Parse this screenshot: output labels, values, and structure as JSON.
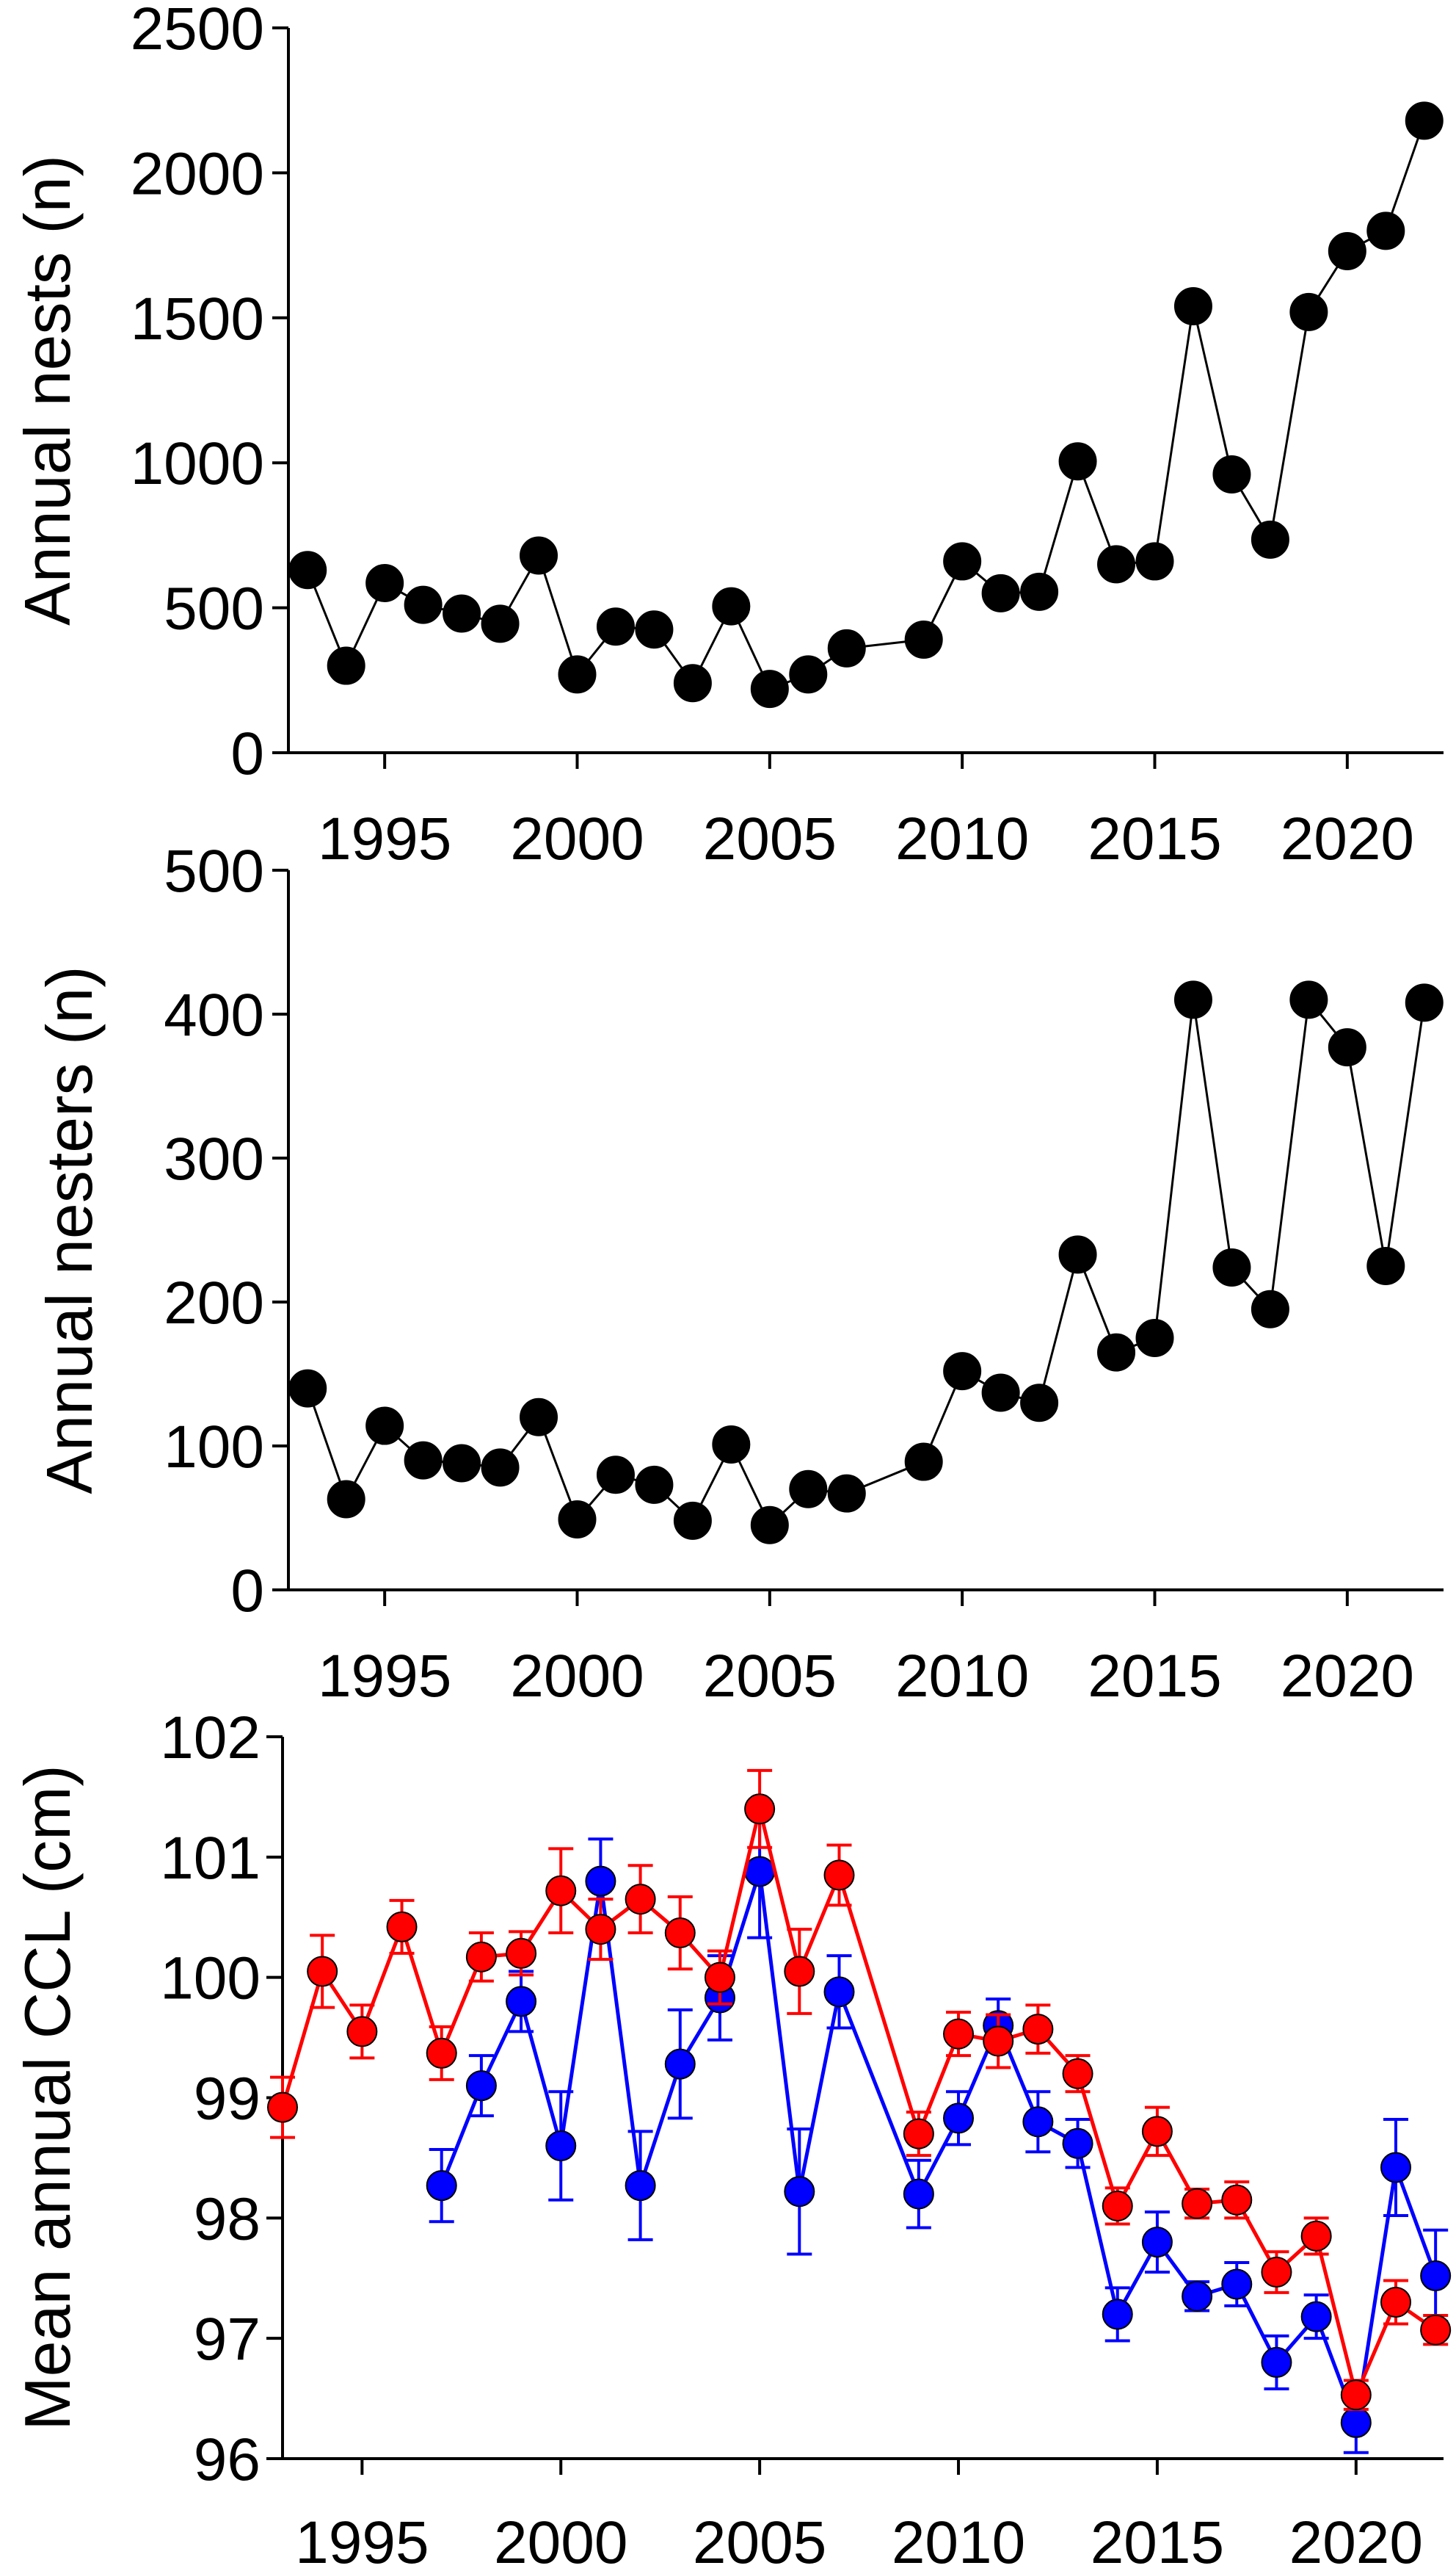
{
  "chart_data": [
    {
      "type": "line",
      "title": "",
      "xlabel": "",
      "ylabel": "Annual nests (n)",
      "xlim": [
        1992.5,
        2022.5
      ],
      "ylim": [
        0,
        2500
      ],
      "x_ticks": [
        1995,
        2000,
        2005,
        2010,
        2015,
        2020
      ],
      "x_tick_labels": [
        "1995",
        "2000",
        "2005",
        "2010",
        "2015",
        "2020"
      ],
      "y_ticks": [
        0,
        500,
        1000,
        1500,
        2000,
        2500
      ],
      "y_tick_labels": [
        "0",
        "500",
        "1000",
        "1500",
        "2000",
        "2500"
      ],
      "grid": false,
      "series": [
        {
          "color": "#000000",
          "points": [
            [
              1993,
              630
            ],
            [
              1994,
              300
            ],
            [
              1995,
              585
            ],
            [
              1996,
              510
            ],
            [
              1997,
              480
            ],
            [
              1998,
              445
            ],
            [
              1999,
              680
            ],
            [
              2000,
              270
            ],
            [
              2001,
              435
            ],
            [
              2002,
              425
            ],
            [
              2003,
              240
            ],
            [
              2004,
              505
            ],
            [
              2005,
              220
            ],
            [
              2006,
              270
            ],
            [
              2007,
              360
            ],
            [
              2009,
              390
            ],
            [
              2010,
              660
            ],
            [
              2011,
              550
            ],
            [
              2012,
              555
            ],
            [
              2013,
              1005
            ],
            [
              2014,
              650
            ],
            [
              2015,
              660
            ],
            [
              2016,
              1540
            ],
            [
              2017,
              960
            ],
            [
              2018,
              735
            ],
            [
              2019,
              1520
            ],
            [
              2020,
              1730
            ],
            [
              2021,
              1800
            ],
            [
              2022,
              2180
            ]
          ]
        }
      ]
    },
    {
      "type": "line",
      "title": "",
      "xlabel": "",
      "ylabel": "Annual nesters (n)",
      "xlim": [
        1992.5,
        2022.5
      ],
      "ylim": [
        0,
        500
      ],
      "x_ticks": [
        1995,
        2000,
        2005,
        2010,
        2015,
        2020
      ],
      "x_tick_labels": [
        "1995",
        "2000",
        "2005",
        "2010",
        "2015",
        "2020"
      ],
      "y_ticks": [
        0,
        100,
        200,
        300,
        400,
        500
      ],
      "y_tick_labels": [
        "0",
        "100",
        "200",
        "300",
        "400",
        "500"
      ],
      "grid": false,
      "series": [
        {
          "color": "#000000",
          "points": [
            [
              1993,
              140
            ],
            [
              1994,
              63
            ],
            [
              1995,
              114
            ],
            [
              1996,
              90
            ],
            [
              1997,
              88
            ],
            [
              1998,
              85
            ],
            [
              1999,
              120
            ],
            [
              2000,
              49
            ],
            [
              2001,
              80
            ],
            [
              2002,
              73
            ],
            [
              2003,
              48
            ],
            [
              2004,
              101
            ],
            [
              2005,
              45
            ],
            [
              2006,
              70
            ],
            [
              2007,
              67
            ],
            [
              2009,
              89
            ],
            [
              2010,
              152
            ],
            [
              2011,
              137
            ],
            [
              2012,
              130
            ],
            [
              2013,
              233
            ],
            [
              2014,
              165
            ],
            [
              2015,
              175
            ],
            [
              2016,
              410
            ],
            [
              2017,
              224
            ],
            [
              2018,
              195
            ],
            [
              2019,
              410
            ],
            [
              2020,
              377
            ],
            [
              2021,
              225
            ],
            [
              2022,
              408
            ]
          ]
        }
      ]
    },
    {
      "type": "line",
      "title": "",
      "xlabel": "",
      "ylabel": "Mean annual CCL (cm)",
      "xlim": [
        1993,
        2022.2
      ],
      "ylim": [
        96,
        102
      ],
      "x_ticks": [
        1995,
        2000,
        2005,
        2010,
        2015,
        2020
      ],
      "x_tick_labels": [
        "1995",
        "2000",
        "2005",
        "2010",
        "2015",
        "2020"
      ],
      "y_ticks": [
        96,
        97,
        98,
        99,
        100,
        101,
        102
      ],
      "y_tick_labels": [
        "96",
        "97",
        "98",
        "99",
        "100",
        "101",
        "102"
      ],
      "grid": false,
      "series": [
        {
          "color": "#0000ff",
          "error_bars": true,
          "points": [
            [
              1997,
              98.27,
              0.3
            ],
            [
              1998,
              99.1,
              0.25
            ],
            [
              1999,
              99.8,
              0.25
            ],
            [
              2000,
              98.6,
              0.45
            ],
            [
              2001,
              100.8,
              0.35
            ],
            [
              2002,
              98.27,
              0.45
            ],
            [
              2003,
              99.28,
              0.45
            ],
            [
              2004,
              99.83,
              0.35
            ],
            [
              2005,
              100.88,
              0.55
            ],
            [
              2006,
              98.22,
              0.52
            ],
            [
              2007,
              99.88,
              0.3
            ],
            [
              2009,
              98.2,
              0.28
            ],
            [
              2010,
              98.83,
              0.22
            ],
            [
              2011,
              99.6,
              0.22
            ],
            [
              2012,
              98.8,
              0.25
            ],
            [
              2013,
              98.62,
              0.2
            ],
            [
              2014,
              97.2,
              0.22
            ],
            [
              2015,
              97.8,
              0.25
            ],
            [
              2016,
              97.35,
              0.12
            ],
            [
              2017,
              97.45,
              0.18
            ],
            [
              2018,
              96.8,
              0.22
            ],
            [
              2019,
              97.18,
              0.18
            ],
            [
              2020,
              96.3,
              0.25
            ],
            [
              2021,
              98.42,
              0.4
            ],
            [
              2022,
              97.52,
              0.38
            ]
          ]
        },
        {
          "color": "#ff0000",
          "error_bars": true,
          "points": [
            [
              1993,
              98.92,
              0.25
            ],
            [
              1994,
              100.05,
              0.3
            ],
            [
              1995,
              99.55,
              0.22
            ],
            [
              1996,
              100.42,
              0.22
            ],
            [
              1997,
              99.37,
              0.22
            ],
            [
              1998,
              100.17,
              0.2
            ],
            [
              1999,
              100.2,
              0.18
            ],
            [
              2000,
              100.72,
              0.35
            ],
            [
              2001,
              100.4,
              0.25
            ],
            [
              2002,
              100.65,
              0.28
            ],
            [
              2003,
              100.37,
              0.3
            ],
            [
              2004,
              100.0,
              0.22
            ],
            [
              2005,
              101.4,
              0.32
            ],
            [
              2006,
              100.05,
              0.35
            ],
            [
              2007,
              100.85,
              0.25
            ],
            [
              2009,
              98.7,
              0.18
            ],
            [
              2010,
              99.53,
              0.18
            ],
            [
              2011,
              99.47,
              0.22
            ],
            [
              2012,
              99.57,
              0.2
            ],
            [
              2013,
              99.2,
              0.15
            ],
            [
              2014,
              98.1,
              0.15
            ],
            [
              2015,
              98.72,
              0.2
            ],
            [
              2016,
              98.12,
              0.12
            ],
            [
              2017,
              98.15,
              0.15
            ],
            [
              2018,
              97.55,
              0.17
            ],
            [
              2019,
              97.85,
              0.15
            ],
            [
              2020,
              96.53,
              0.12
            ],
            [
              2021,
              97.3,
              0.18
            ],
            [
              2022,
              97.07,
              0.12
            ]
          ]
        }
      ]
    }
  ]
}
